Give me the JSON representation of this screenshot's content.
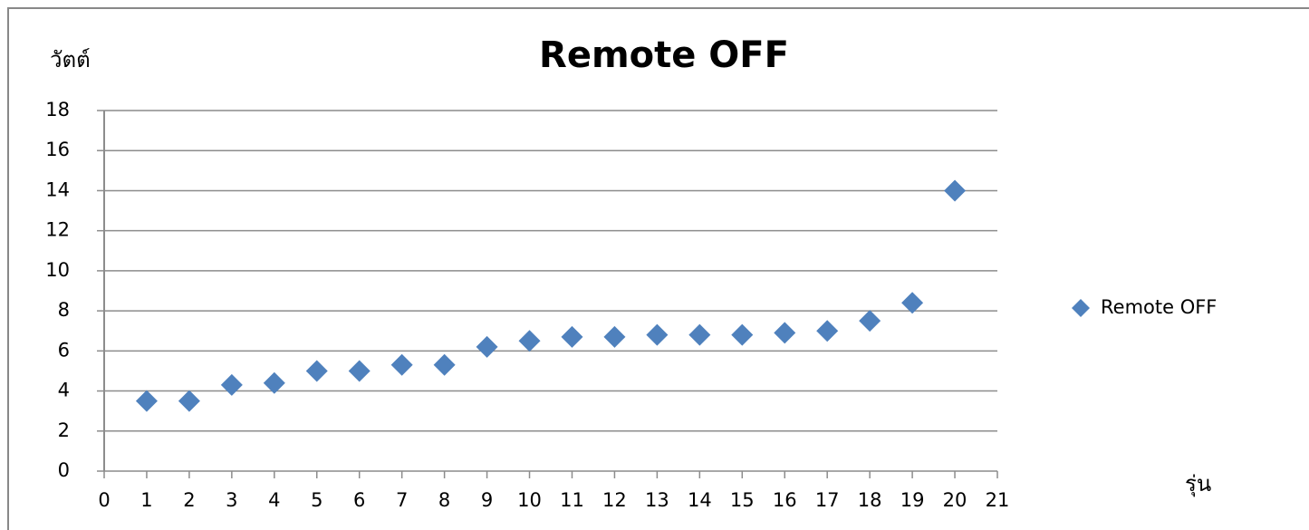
{
  "chart_data": {
    "type": "scatter",
    "title": "Remote OFF",
    "y_label": "วัตต์",
    "x_label": "รุ่น",
    "series": [
      {
        "name": "Remote OFF",
        "color": "#4f81bd",
        "x": [
          1,
          2,
          3,
          4,
          5,
          6,
          7,
          8,
          9,
          10,
          11,
          12,
          13,
          14,
          15,
          16,
          17,
          18,
          19,
          20
        ],
        "values": [
          3.5,
          3.5,
          4.3,
          4.4,
          5.0,
          5.0,
          5.3,
          5.3,
          6.2,
          6.5,
          6.7,
          6.7,
          6.8,
          6.8,
          6.8,
          6.9,
          7.0,
          7.5,
          8.4,
          14.0
        ]
      }
    ],
    "xlim": [
      0,
      21
    ],
    "xticks": [
      0,
      1,
      2,
      3,
      4,
      5,
      6,
      7,
      8,
      9,
      10,
      11,
      12,
      13,
      14,
      15,
      16,
      17,
      18,
      19,
      20,
      21
    ],
    "ylim": [
      0,
      18
    ],
    "yticks": [
      0,
      2,
      4,
      6,
      8,
      10,
      12,
      14,
      16,
      18
    ],
    "grid": true,
    "legend": "right"
  }
}
